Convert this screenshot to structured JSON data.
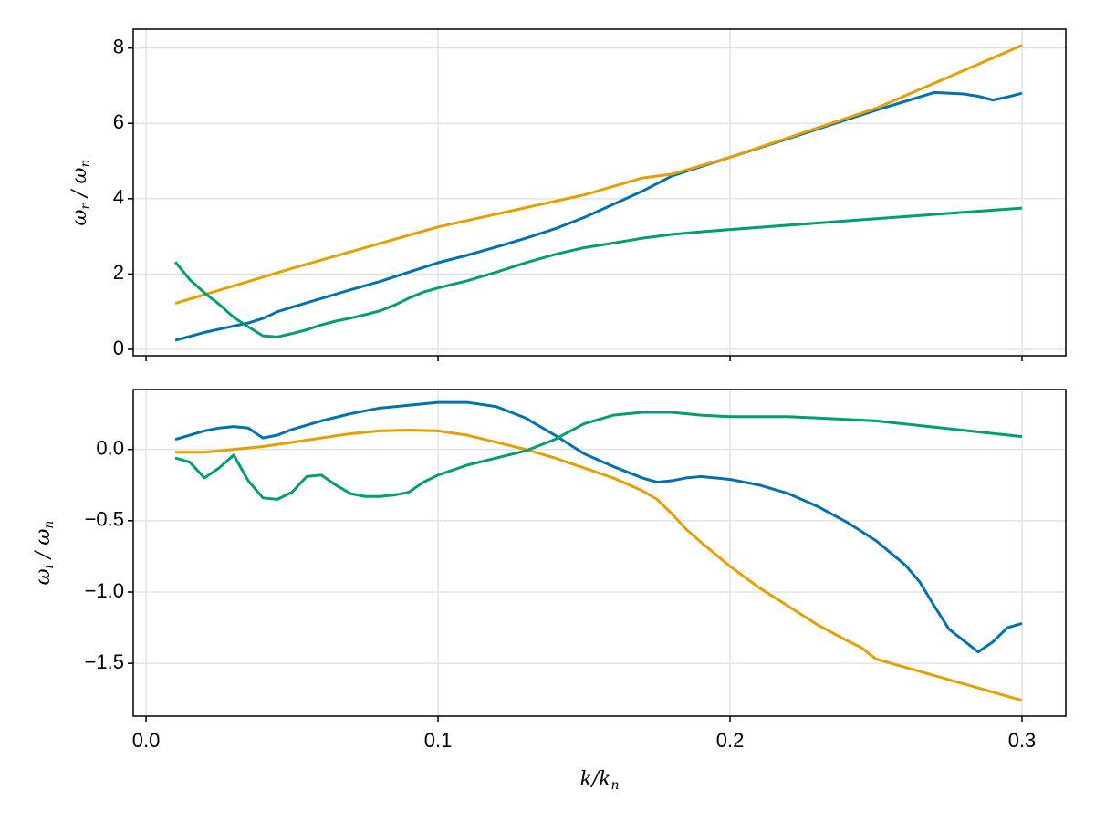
{
  "chart_data": [
    {
      "type": "line",
      "ylabel": [
        "ω",
        "r",
        " / ω",
        "n"
      ],
      "xlim": [
        -0.0044,
        0.315
      ],
      "ylim": [
        -0.17,
        8.5
      ],
      "xticks": [
        {
          "value": 0,
          "label": "0.0"
        },
        0.1,
        0.2,
        0.3
      ],
      "yticks": [
        0,
        2,
        4,
        6,
        8
      ],
      "show_xtick_labels": false,
      "grid": true,
      "series": [
        {
          "color": "#0072b2",
          "x": [
            0.01,
            0.02,
            0.03,
            0.035,
            0.04,
            0.045,
            0.05,
            0.06,
            0.07,
            0.08,
            0.09,
            0.1,
            0.11,
            0.12,
            0.13,
            0.14,
            0.15,
            0.16,
            0.17,
            0.18,
            0.19,
            0.2,
            0.25,
            0.27,
            0.28,
            0.285,
            0.29,
            0.295,
            0.3
          ],
          "values": [
            0.24,
            0.45,
            0.62,
            0.7,
            0.82,
            1.0,
            1.12,
            1.35,
            1.58,
            1.8,
            2.05,
            2.3,
            2.5,
            2.72,
            2.95,
            3.2,
            3.5,
            3.85,
            4.2,
            4.6,
            4.85,
            5.1,
            6.35,
            6.82,
            6.78,
            6.72,
            6.62,
            6.7,
            6.8
          ]
        },
        {
          "color": "#e69f00",
          "x": [
            0.01,
            0.05,
            0.1,
            0.15,
            0.17,
            0.18,
            0.2,
            0.25,
            0.3
          ],
          "values": [
            1.22,
            2.15,
            3.25,
            4.1,
            4.55,
            4.65,
            5.1,
            6.4,
            8.07
          ]
        },
        {
          "color": "#009e73",
          "x": [
            0.01,
            0.015,
            0.02,
            0.025,
            0.03,
            0.035,
            0.04,
            0.045,
            0.05,
            0.055,
            0.06,
            0.065,
            0.07,
            0.075,
            0.08,
            0.085,
            0.09,
            0.095,
            0.1,
            0.11,
            0.12,
            0.13,
            0.14,
            0.15,
            0.16,
            0.17,
            0.18,
            0.19,
            0.2,
            0.25,
            0.3
          ],
          "values": [
            2.32,
            1.85,
            1.5,
            1.2,
            0.85,
            0.6,
            0.36,
            0.33,
            0.42,
            0.52,
            0.65,
            0.75,
            0.83,
            0.92,
            1.02,
            1.17,
            1.36,
            1.52,
            1.63,
            1.82,
            2.05,
            2.3,
            2.52,
            2.7,
            2.82,
            2.95,
            3.05,
            3.12,
            3.18,
            3.47,
            3.75
          ]
        }
      ]
    },
    {
      "type": "line",
      "ylabel": [
        "ω",
        "i",
        " / ω",
        "n"
      ],
      "xlabel": [
        "k/k",
        "n"
      ],
      "xlim": [
        -0.0044,
        0.315
      ],
      "ylim": [
        -1.87,
        0.42
      ],
      "xticks": [
        {
          "value": 0,
          "label": "0.0"
        },
        0.1,
        0.2,
        0.3
      ],
      "yticks": [
        {
          "value": 0,
          "label": "0.0"
        },
        {
          "value": -0.5,
          "label": "−0.5"
        },
        {
          "value": -1,
          "label": "−1.0"
        },
        {
          "value": -1.5,
          "label": "−1.5"
        }
      ],
      "show_xtick_labels": true,
      "grid": true,
      "series": [
        {
          "color": "#0072b2",
          "x": [
            0.01,
            0.015,
            0.02,
            0.025,
            0.03,
            0.035,
            0.04,
            0.045,
            0.05,
            0.06,
            0.07,
            0.08,
            0.09,
            0.1,
            0.11,
            0.12,
            0.13,
            0.14,
            0.15,
            0.16,
            0.17,
            0.175,
            0.18,
            0.185,
            0.19,
            0.2,
            0.21,
            0.22,
            0.23,
            0.24,
            0.25,
            0.26,
            0.265,
            0.27,
            0.275,
            0.28,
            0.285,
            0.29,
            0.295,
            0.3
          ],
          "values": [
            0.07,
            0.1,
            0.13,
            0.15,
            0.16,
            0.15,
            0.08,
            0.1,
            0.14,
            0.2,
            0.25,
            0.29,
            0.31,
            0.33,
            0.33,
            0.3,
            0.22,
            0.1,
            -0.03,
            -0.12,
            -0.2,
            -0.23,
            -0.22,
            -0.2,
            -0.19,
            -0.21,
            -0.25,
            -0.31,
            -0.4,
            -0.51,
            -0.64,
            -0.81,
            -0.93,
            -1.1,
            -1.26,
            -1.34,
            -1.42,
            -1.35,
            -1.25,
            -1.22
          ]
        },
        {
          "color": "#e69f00",
          "x": [
            0.01,
            0.02,
            0.03,
            0.04,
            0.05,
            0.06,
            0.07,
            0.08,
            0.09,
            0.1,
            0.11,
            0.12,
            0.13,
            0.14,
            0.15,
            0.16,
            0.17,
            0.175,
            0.18,
            0.185,
            0.19,
            0.2,
            0.21,
            0.22,
            0.23,
            0.24,
            0.245,
            0.25,
            0.3
          ],
          "values": [
            -0.02,
            -0.02,
            0.0,
            0.02,
            0.05,
            0.08,
            0.11,
            0.13,
            0.135,
            0.13,
            0.1,
            0.05,
            0.0,
            -0.06,
            -0.13,
            -0.2,
            -0.29,
            -0.35,
            -0.45,
            -0.56,
            -0.65,
            -0.82,
            -0.97,
            -1.1,
            -1.23,
            -1.34,
            -1.39,
            -1.47,
            -1.76
          ]
        },
        {
          "color": "#009e73",
          "x": [
            0.01,
            0.015,
            0.02,
            0.025,
            0.03,
            0.035,
            0.04,
            0.045,
            0.05,
            0.055,
            0.06,
            0.065,
            0.07,
            0.075,
            0.08,
            0.085,
            0.09,
            0.095,
            0.1,
            0.11,
            0.12,
            0.13,
            0.14,
            0.15,
            0.16,
            0.17,
            0.18,
            0.19,
            0.2,
            0.22,
            0.25,
            0.3
          ],
          "values": [
            -0.06,
            -0.09,
            -0.2,
            -0.13,
            -0.04,
            -0.22,
            -0.34,
            -0.35,
            -0.3,
            -0.19,
            -0.18,
            -0.25,
            -0.31,
            -0.33,
            -0.33,
            -0.32,
            -0.3,
            -0.23,
            -0.18,
            -0.11,
            -0.06,
            -0.01,
            0.07,
            0.18,
            0.24,
            0.26,
            0.26,
            0.24,
            0.23,
            0.23,
            0.2,
            0.09
          ]
        }
      ]
    }
  ]
}
